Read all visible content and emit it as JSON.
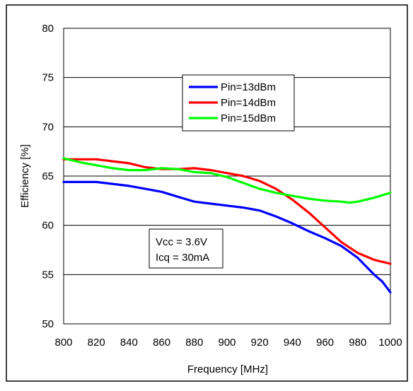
{
  "chart_data": {
    "type": "line",
    "title": "",
    "xlabel": "Frequency [MHz]",
    "ylabel": "Efficiency [%]",
    "xlim": [
      800,
      1000
    ],
    "ylim": [
      50,
      80
    ],
    "x_ticks": [
      800,
      820,
      840,
      860,
      880,
      900,
      920,
      940,
      960,
      980,
      1000
    ],
    "y_ticks": [
      50,
      55,
      60,
      65,
      70,
      75,
      80
    ],
    "grid": "horizontal",
    "legend_position": "top-center",
    "series": [
      {
        "name": "Pin=13dBm",
        "color": "#0000ff",
        "points": [
          [
            800,
            64.4
          ],
          [
            810,
            64.4
          ],
          [
            820,
            64.4
          ],
          [
            830,
            64.2
          ],
          [
            840,
            64.0
          ],
          [
            850,
            63.7
          ],
          [
            860,
            63.4
          ],
          [
            870,
            62.9
          ],
          [
            880,
            62.4
          ],
          [
            890,
            62.2
          ],
          [
            900,
            62.0
          ],
          [
            910,
            61.8
          ],
          [
            920,
            61.5
          ],
          [
            930,
            60.9
          ],
          [
            940,
            60.2
          ],
          [
            950,
            59.4
          ],
          [
            960,
            58.7
          ],
          [
            970,
            57.9
          ],
          [
            980,
            56.7
          ],
          [
            990,
            55.0
          ],
          [
            995,
            54.3
          ],
          [
            1000,
            53.2
          ]
        ]
      },
      {
        "name": "Pin=14dBm",
        "color": "#ff0000",
        "points": [
          [
            800,
            66.7
          ],
          [
            810,
            66.7
          ],
          [
            820,
            66.7
          ],
          [
            830,
            66.5
          ],
          [
            840,
            66.3
          ],
          [
            850,
            65.9
          ],
          [
            860,
            65.7
          ],
          [
            870,
            65.7
          ],
          [
            880,
            65.8
          ],
          [
            890,
            65.6
          ],
          [
            900,
            65.3
          ],
          [
            910,
            65.0
          ],
          [
            920,
            64.5
          ],
          [
            930,
            63.7
          ],
          [
            940,
            62.6
          ],
          [
            950,
            61.3
          ],
          [
            960,
            59.8
          ],
          [
            970,
            58.3
          ],
          [
            980,
            57.2
          ],
          [
            990,
            56.5
          ],
          [
            1000,
            56.1
          ]
        ]
      },
      {
        "name": "Pin=15dBm",
        "color": "#00ff00",
        "points": [
          [
            800,
            66.8
          ],
          [
            810,
            66.4
          ],
          [
            820,
            66.1
          ],
          [
            830,
            65.8
          ],
          [
            840,
            65.6
          ],
          [
            850,
            65.6
          ],
          [
            860,
            65.8
          ],
          [
            870,
            65.7
          ],
          [
            880,
            65.4
          ],
          [
            890,
            65.3
          ],
          [
            900,
            64.9
          ],
          [
            910,
            64.3
          ],
          [
            920,
            63.7
          ],
          [
            930,
            63.3
          ],
          [
            940,
            63.0
          ],
          [
            950,
            62.7
          ],
          [
            960,
            62.5
          ],
          [
            970,
            62.4
          ],
          [
            975,
            62.3
          ],
          [
            980,
            62.4
          ],
          [
            990,
            62.8
          ],
          [
            1000,
            63.3
          ]
        ]
      }
    ],
    "annotations": [
      "Vcc = 3.6V",
      "Icq = 30mA"
    ]
  }
}
